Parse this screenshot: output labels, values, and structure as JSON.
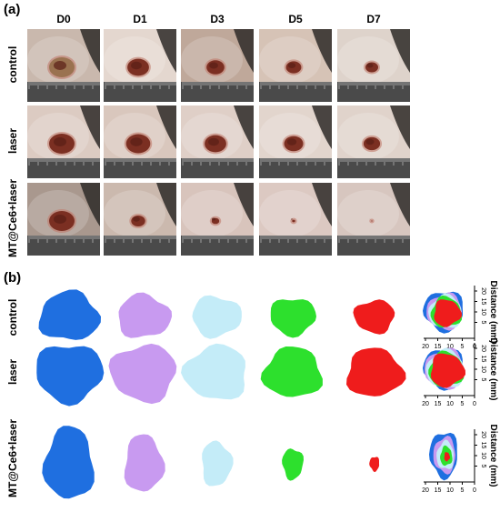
{
  "panel_a": {
    "label": "(a)",
    "days": [
      "D0",
      "D1",
      "D3",
      "D5",
      "D7"
    ],
    "groups": [
      "control",
      "laser",
      "MT@Ce6+laser"
    ],
    "wound_sizes": [
      [
        1.0,
        0.85,
        0.7,
        0.6,
        0.5
      ],
      [
        1.0,
        0.95,
        0.85,
        0.75,
        0.65
      ],
      [
        1.0,
        0.55,
        0.3,
        0.12,
        0.05
      ]
    ]
  },
  "panel_b": {
    "label": "(b)",
    "groups": [
      "control",
      "laser",
      "MT@Ce6+laser"
    ],
    "colors": [
      "#1f6fe0",
      "#c89af0",
      "#c4ecf8",
      "#2de02d",
      "#ef1c1c"
    ],
    "relative_areas": [
      [
        1.0,
        0.78,
        0.68,
        0.58,
        0.45
      ],
      [
        1.0,
        0.95,
        0.88,
        0.75,
        0.7
      ],
      [
        1.0,
        0.62,
        0.38,
        0.18,
        0.04
      ]
    ],
    "overlay_axis_label": "Distance (mm)",
    "overlay_ticks": [
      "20",
      "15",
      "10",
      "5",
      "0"
    ],
    "overlay_ticks_y": [
      "20",
      "15",
      "10",
      "5"
    ]
  }
}
